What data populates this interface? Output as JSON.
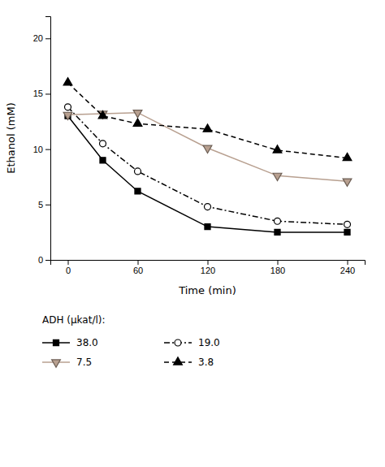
{
  "chart_data": {
    "type": "line",
    "xlabel": "Time (min)",
    "ylabel": "Ethanol (mM)",
    "x": [
      0,
      30,
      60,
      120,
      180,
      240
    ],
    "series": [
      {
        "name": "38.0",
        "values": [
          13.0,
          9.0,
          6.2,
          3.0,
          2.5,
          2.5
        ],
        "color": "#000000",
        "marker": "square",
        "line_style": "solid"
      },
      {
        "name": "19.0",
        "values": [
          13.8,
          10.5,
          8.0,
          4.8,
          3.5,
          3.2
        ],
        "color": "#000000",
        "marker": "circle-open",
        "line_style": "dashdot"
      },
      {
        "name": "7.5",
        "values": [
          13.1,
          13.2,
          13.3,
          10.1,
          7.6,
          7.1
        ],
        "color": "#b8a090",
        "marker": "triangle-down",
        "line_style": "solid"
      },
      {
        "name": "3.8",
        "values": [
          16.0,
          13.0,
          12.3,
          11.8,
          9.9,
          9.2
        ],
        "color": "#000000",
        "marker": "triangle-up",
        "line_style": "dashed"
      }
    ],
    "xlim": [
      -15,
      255
    ],
    "ylim": [
      0,
      22
    ],
    "xticks": [
      0,
      60,
      120,
      180,
      240
    ],
    "yticks": [
      0,
      5,
      10,
      15,
      20
    ],
    "grid": false,
    "legend": "bottom",
    "legend_title": "ADH (μkat/l):"
  }
}
